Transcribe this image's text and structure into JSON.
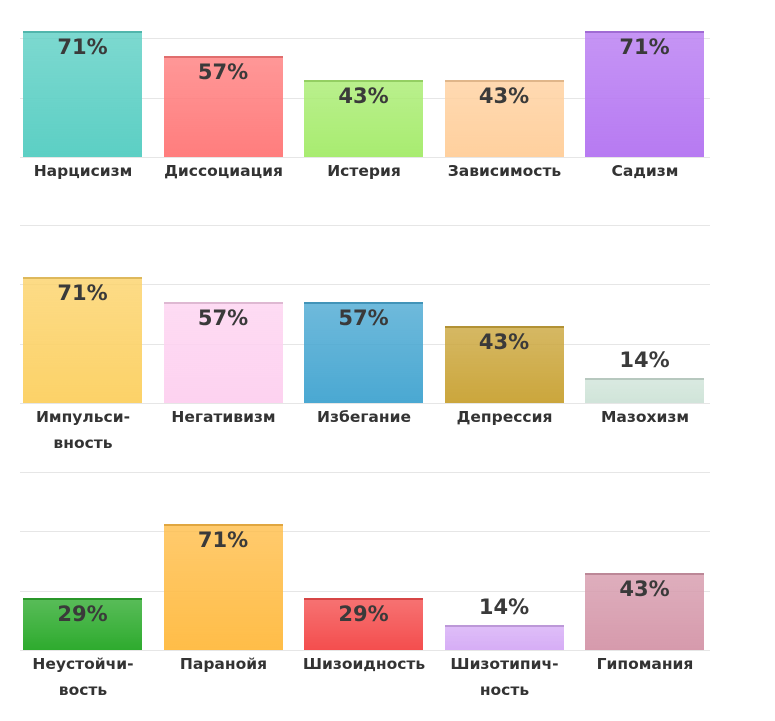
{
  "chart_data": [
    {
      "type": "bar",
      "categories": [
        "Нарцисизм",
        "Диссоциация",
        "Истерия",
        "Зависимость",
        "Садизм"
      ],
      "values": [
        71,
        57,
        43,
        43,
        71
      ],
      "value_labels": [
        "71%",
        "57%",
        "43%",
        "43%",
        "71%"
      ],
      "colors": [
        "#5ccfc4",
        "#ff7d7d",
        "#a8ec70",
        "#ffd09e",
        "#b77af2"
      ],
      "ylim": [
        0,
        100
      ],
      "yticks": [
        0,
        33,
        67,
        100
      ],
      "grid": true
    },
    {
      "type": "bar",
      "categories": [
        "Импульси-вность",
        "Негативизм",
        "Избегание",
        "Депрессия",
        "Мазохизм"
      ],
      "values": [
        71,
        57,
        57,
        43,
        14
      ],
      "value_labels": [
        "71%",
        "57%",
        "57%",
        "43%",
        "14%"
      ],
      "colors": [
        "#fcd268",
        "#fdd2f0",
        "#4aa8d2",
        "#cba63c",
        "#d0e4d9"
      ],
      "ylim": [
        0,
        100
      ],
      "yticks": [
        0,
        33,
        67,
        100
      ],
      "grid": true
    },
    {
      "type": "bar",
      "categories": [
        "Неустойчи-вость",
        "Паранойя",
        "Шизоидность",
        "Шизотипич-ность",
        "Гипомания"
      ],
      "values": [
        29,
        71,
        29,
        14,
        43
      ],
      "value_labels": [
        "29%",
        "71%",
        "29%",
        "14%",
        "43%"
      ],
      "colors": [
        "#2eab2e",
        "#ffbd48",
        "#f44e4e",
        "#d6adf6",
        "#d69aac"
      ],
      "ylim": [
        0,
        100
      ],
      "yticks": [
        0,
        33,
        67,
        100
      ],
      "grid": true
    }
  ]
}
